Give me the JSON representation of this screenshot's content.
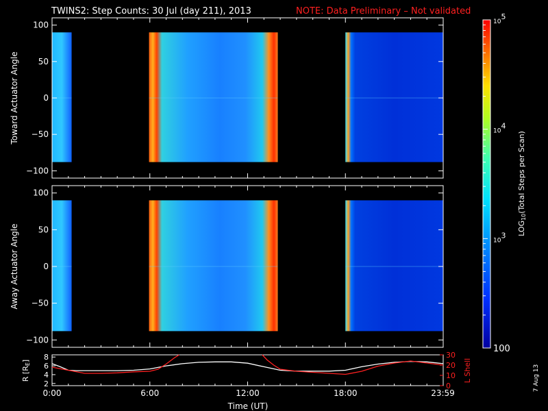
{
  "title": "TWINS2: Step Counts: 30 Jul (day 211), 2013",
  "note": "NOTE: Data Preliminary – Not validated",
  "date_stamp": "7 Aug 13",
  "colors": {
    "title": "#ffffff",
    "note": "#ff2020",
    "axes": "#ffffff",
    "r_line": "#ffffff",
    "lshell_line": "#ff2020",
    "gap": "#000000"
  },
  "chart_data": [
    {
      "type": "heatmap",
      "ylabel": "Toward Actuator Angle",
      "ylim": [
        -110,
        110
      ],
      "yticks": [
        100,
        50,
        0,
        -50,
        -100
      ],
      "xlim": [
        0,
        24
      ],
      "data_range_deg": [
        -88,
        90
      ],
      "segments": [
        {
          "start_h": 0.0,
          "end_h": 1.2,
          "description": "cyan/blue, weak"
        },
        {
          "start_h": 5.95,
          "end_h": 13.85,
          "description": "orange/red edges, cyan/blue interior"
        },
        {
          "start_h": 18.0,
          "end_h": 24.0,
          "description": "cyan edge, deep blue interior"
        }
      ]
    },
    {
      "type": "heatmap",
      "ylabel": "Away Actuator Angle",
      "ylim": [
        -110,
        110
      ],
      "yticks": [
        100,
        50,
        0,
        -50,
        -100
      ],
      "xlim": [
        0,
        24
      ],
      "data_range_deg": [
        -88,
        90
      ],
      "segments": [
        {
          "start_h": 0.0,
          "end_h": 1.2,
          "description": "cyan/blue, weak"
        },
        {
          "start_h": 5.95,
          "end_h": 13.85,
          "description": "orange band near +80, cyan/blue interior"
        },
        {
          "start_h": 18.0,
          "end_h": 24.0,
          "description": "cyan edge, deep blue interior"
        }
      ]
    },
    {
      "type": "line",
      "xlabel": "Time (UT)",
      "xticks": [
        "0:00",
        "6:00",
        "12:00",
        "18:00",
        "23:59"
      ],
      "xtick_hours": [
        0,
        6,
        12,
        18,
        23.98
      ],
      "ylabel_left": "R [R",
      "ylabel_left_sub": "E",
      "ylabel_left_close": "]",
      "yticks_left": [
        "8",
        "6",
        "4",
        "2"
      ],
      "ylim_left": [
        1.5,
        8.5
      ],
      "ylabel_right": "L Shell",
      "yticks_right": [
        "30",
        "20",
        "10",
        "0"
      ],
      "ylim_right": [
        0,
        30
      ],
      "series": [
        {
          "axis": "left",
          "x": [
            0,
            0.5,
            1,
            1.5,
            2,
            3,
            4,
            5,
            6,
            7,
            8,
            9,
            10,
            11,
            12,
            13,
            14,
            15,
            16,
            17,
            18,
            19,
            20,
            21,
            22,
            23,
            24
          ],
          "y": [
            6.5,
            5.8,
            5.0,
            4.9,
            4.9,
            4.9,
            4.9,
            5.0,
            5.3,
            6.0,
            6.5,
            6.8,
            6.9,
            6.9,
            6.6,
            5.8,
            5.0,
            4.8,
            4.8,
            4.8,
            5.0,
            5.8,
            6.4,
            6.8,
            7.0,
            6.9,
            6.5
          ]
        },
        {
          "axis": "right",
          "x": [
            0,
            1,
            2,
            3,
            4,
            5,
            6,
            6.5,
            7,
            7.5,
            7.8,
            12.9,
            13.2,
            13.6,
            14,
            15,
            16,
            17,
            18,
            19,
            20,
            21,
            22,
            23,
            24
          ],
          "y": [
            18,
            15,
            12,
            12,
            12.5,
            13.5,
            14,
            16,
            21,
            27,
            30,
            30,
            25,
            20,
            16,
            14,
            13,
            12,
            11,
            14,
            19,
            22,
            24,
            22,
            20
          ]
        }
      ]
    },
    {
      "type": "colorbar",
      "label_log": "LOG",
      "label_sub": "10",
      "label_rest": "(Total Steps per Scan)",
      "tick_base": "10",
      "ticks": [
        {
          "value": 100,
          "label": "100",
          "exp": ""
        },
        {
          "value": 1000,
          "label": "",
          "exp": "3"
        },
        {
          "value": 10000,
          "label": "",
          "exp": "4"
        },
        {
          "value": 100000,
          "label": "",
          "exp": "5"
        }
      ],
      "range": [
        100,
        100000
      ]
    }
  ]
}
